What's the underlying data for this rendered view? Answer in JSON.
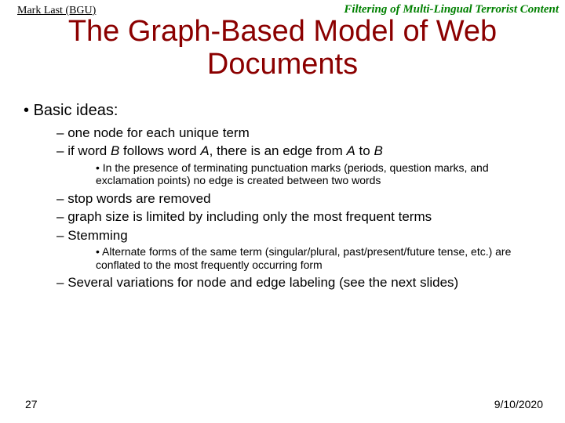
{
  "colors": {
    "title_color": "#8b0000",
    "header_right_color": "#008000",
    "text_color": "#000000",
    "background": "#ffffff"
  },
  "typography": {
    "header_font": "Times New Roman",
    "body_font": "Arial",
    "title_size_pt": 38,
    "lvl1_size_pt": 20,
    "lvl2_size_pt": 17,
    "lvl3_size_pt": 14,
    "footer_size_pt": 14,
    "header_left_size_pt": 14,
    "header_right_size_pt": 15
  },
  "header": {
    "left": "Mark Last (BGU)",
    "right": "Filtering of Multi-Lingual Terrorist Content"
  },
  "title": "The Graph-Based Model of Web Documents",
  "bullets": {
    "root": "Basic ideas:",
    "b1": "one node for each unique term",
    "b2_pre": "if word ",
    "b2_B1": "B",
    "b2_mid1": " follows word ",
    "b2_A": "A",
    "b2_mid2": ", there is an edge from ",
    "b2_A2": "A",
    "b2_mid3": " to ",
    "b2_B2": "B",
    "b2s1": "In the presence of terminating punctuation marks (periods, question marks, and exclamation points) no edge is created between two words",
    "b3": "stop words are removed",
    "b4": "graph size is limited by including only the most frequent terms",
    "b5": "Stemming",
    "b5s1": "Alternate forms of the same term (singular/plural, past/present/future tense, etc.) are conflated to the most frequently occurring form",
    "b6": "Several variations for node and edge labeling (see the next slides)"
  },
  "footer": {
    "page": "27",
    "date": "9/10/2020"
  }
}
